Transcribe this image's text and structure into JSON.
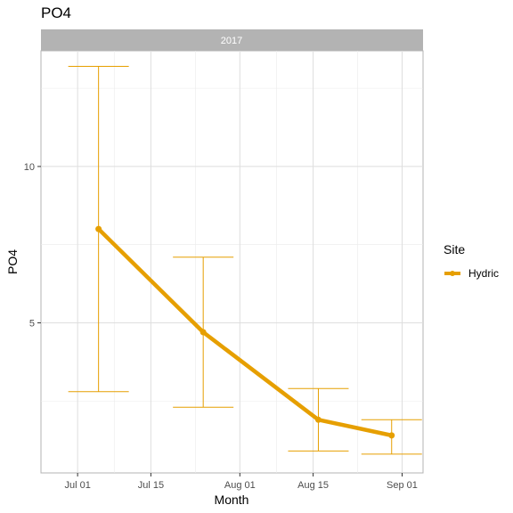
{
  "chart_data": {
    "type": "line",
    "title": "PO4",
    "facet_label": "2017",
    "xlabel": "Month",
    "ylabel": "PO4",
    "x_ticks": [
      "Jul 01",
      "Jul 15",
      "Aug 01",
      "Aug 15",
      "Sep 01"
    ],
    "y_ticks": [
      "5",
      "10"
    ],
    "xlim": [
      "2017-06-24",
      "2017-09-05"
    ],
    "ylim": [
      0.2,
      13.7
    ],
    "grid": true,
    "legend": {
      "title": "Site",
      "placement": "right"
    },
    "series": [
      {
        "name": "Hydric",
        "color": "#E69F00",
        "points": [
          {
            "x": "2017-07-05",
            "y": 8.0,
            "ymin": 2.8,
            "ymax": 13.2
          },
          {
            "x": "2017-07-25",
            "y": 4.7,
            "ymin": 2.3,
            "ymax": 7.1
          },
          {
            "x": "2017-08-16",
            "y": 1.9,
            "ymin": 0.9,
            "ymax": 2.9
          },
          {
            "x": "2017-08-30",
            "y": 1.4,
            "ymin": 0.8,
            "ymax": 1.9
          }
        ]
      }
    ]
  }
}
